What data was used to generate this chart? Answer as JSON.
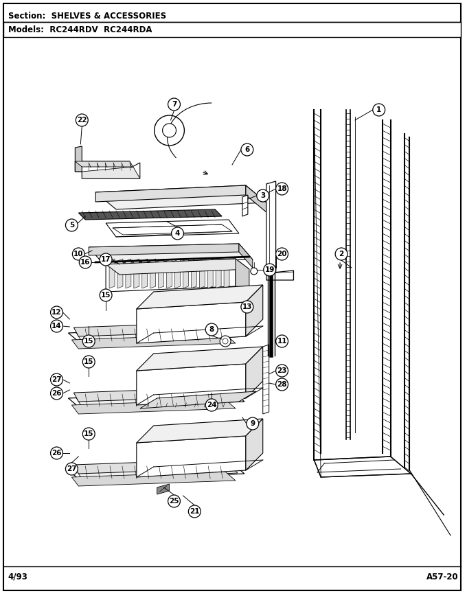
{
  "title_section": "Section:  SHELVES & ACCESSORIES",
  "title_models": "Models:  RC244RDV  RC244RDA",
  "footer_left": "4/93",
  "footer_right": "A57-20",
  "bg_color": "#ffffff"
}
